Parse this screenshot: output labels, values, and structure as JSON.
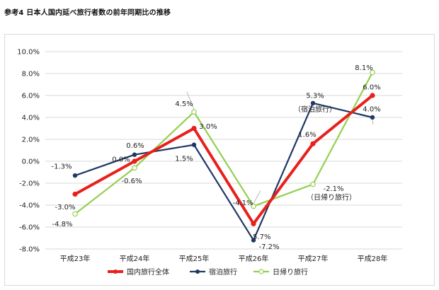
{
  "title": "参考4 日本人国内延べ旅行者数の前年同期比の推移",
  "chart_data": {
    "type": "line",
    "title": "参考4 日本人国内延べ旅行者数の前年同期比の推移",
    "xlabel": "",
    "ylabel": "",
    "categories": [
      "平成23年",
      "平成24年",
      "平成25年",
      "平成26年",
      "平成27年",
      "平成28年"
    ],
    "ylim": [
      -8.0,
      10.0
    ],
    "yticks": [
      "10.0%",
      "8.0%",
      "6.0%",
      "4.0%",
      "2.0%",
      "0.0%",
      "-2.0%",
      "-4.0%",
      "-6.0%",
      "-8.0%"
    ],
    "grid": true,
    "legend": "bottom",
    "series": [
      {
        "name": "国内旅行全体",
        "color": "#e8201c",
        "values": [
          -3.0,
          0.0,
          3.0,
          -5.7,
          1.6,
          6.0
        ],
        "labels": [
          "-3.0%",
          "0.0%",
          "3.0%",
          "-5.7%",
          "1.6%",
          "6.0%"
        ]
      },
      {
        "name": "宿泊旅行",
        "color": "#1f3864",
        "values": [
          -1.3,
          0.6,
          1.5,
          -7.2,
          5.3,
          4.0
        ],
        "labels": [
          "-1.3%",
          "0.6%",
          "1.5%",
          "-7.2%",
          "5.3%",
          "4.0%"
        ]
      },
      {
        "name": "日帰り旅行",
        "color": "#92d050",
        "values": [
          -4.8,
          -0.6,
          4.5,
          -4.1,
          -2.1,
          8.1
        ],
        "labels": [
          "-4.8%",
          "-0.6%",
          "4.5%",
          "-4.1%",
          "-2.1%",
          "8.1%"
        ]
      }
    ],
    "annotations": [
      "（宿泊旅行）",
      "（日帰り旅行）"
    ]
  }
}
